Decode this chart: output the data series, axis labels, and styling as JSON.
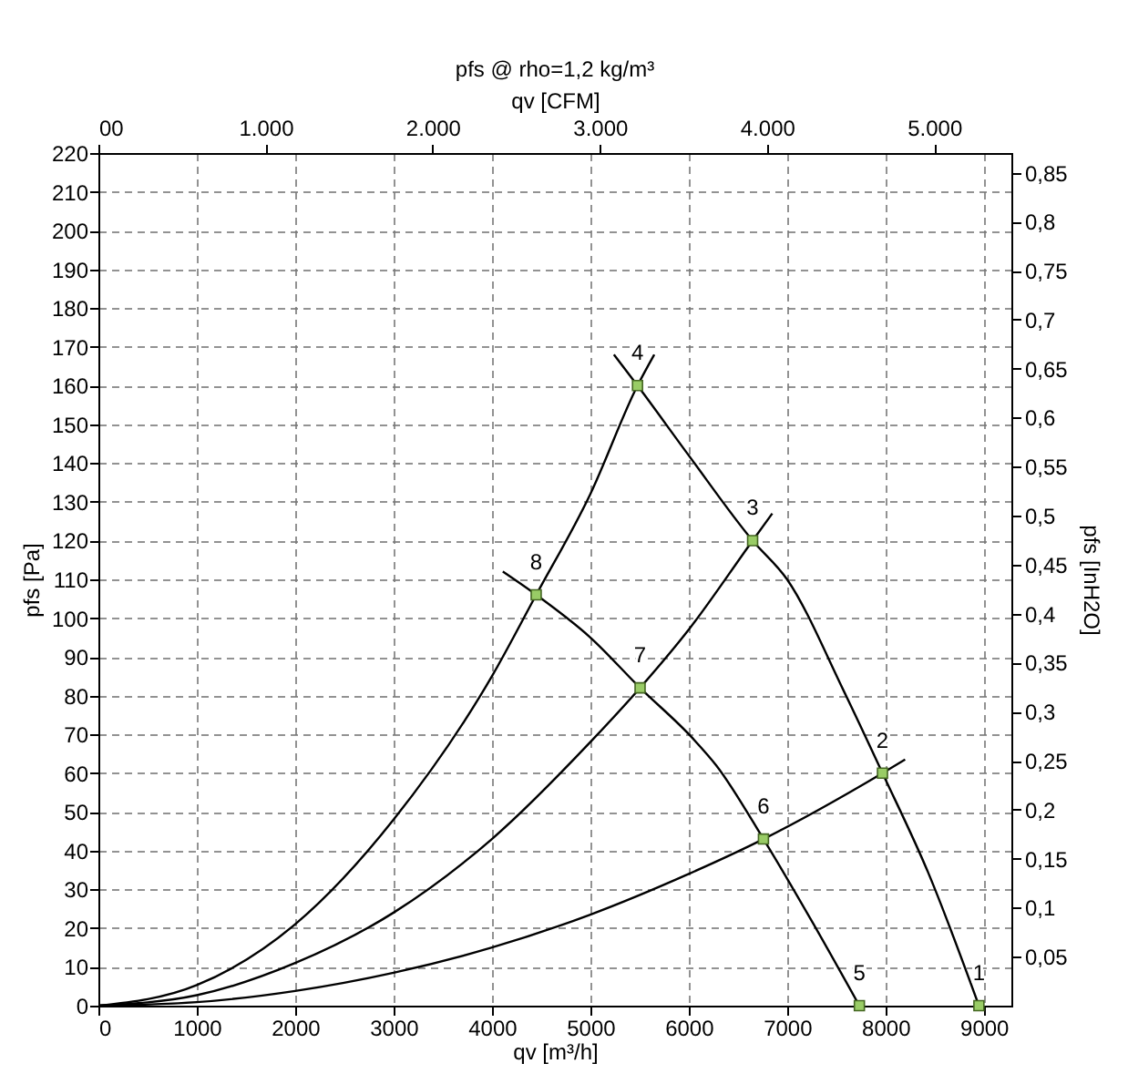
{
  "chart_data": {
    "type": "line",
    "title": "pfs @ rho=1,2 kg/m³",
    "xlabel": "qv [m³/h]",
    "ylabel": "pfs [Pa]",
    "x2label": "qv [CFM]",
    "y2label": "pfs [InH2O]",
    "xlim": [
      0,
      9280
    ],
    "xticks": [
      0,
      1000,
      2000,
      3000,
      4000,
      5000,
      6000,
      7000,
      8000,
      9000
    ],
    "ylim": [
      0,
      220
    ],
    "yticks": [
      0,
      10,
      20,
      30,
      40,
      50,
      60,
      70,
      80,
      90,
      100,
      110,
      120,
      130,
      140,
      150,
      160,
      170,
      180,
      190,
      200,
      210,
      220
    ],
    "x2lim": [
      0,
      5462
    ],
    "x2ticks": [
      {
        "value": 0,
        "label": "00"
      },
      {
        "value": 1000,
        "label": "1.000"
      },
      {
        "value": 2000,
        "label": "2.000"
      },
      {
        "value": 3000,
        "label": "3.000"
      },
      {
        "value": 4000,
        "label": "4.000"
      },
      {
        "value": 5000,
        "label": "5.000"
      }
    ],
    "y2lim": [
      0,
      0.87
    ],
    "y2ticks": [
      {
        "value": 0.05,
        "label": "0,05"
      },
      {
        "value": 0.1,
        "label": "0,1"
      },
      {
        "value": 0.15,
        "label": "0,15"
      },
      {
        "value": 0.2,
        "label": "0,2"
      },
      {
        "value": 0.25,
        "label": "0,25"
      },
      {
        "value": 0.3,
        "label": "0,3"
      },
      {
        "value": 0.35,
        "label": "0,35"
      },
      {
        "value": 0.4,
        "label": "0,4"
      },
      {
        "value": 0.45,
        "label": "0,45"
      },
      {
        "value": 0.5,
        "label": "0,5"
      },
      {
        "value": 0.55,
        "label": "0,55"
      },
      {
        "value": 0.6,
        "label": "0,6"
      },
      {
        "value": 0.65,
        "label": "0,65"
      },
      {
        "value": 0.7,
        "label": "0,7"
      },
      {
        "value": 0.75,
        "label": "0,75"
      },
      {
        "value": 0.8,
        "label": "0,8"
      },
      {
        "value": 0.85,
        "label": "0,85"
      }
    ],
    "grid": true,
    "line_style": "solid",
    "series": [
      {
        "type": "line",
        "color": "#000000",
        "x": [
          5240,
          5480,
          6000,
          6650,
          7000,
          7580,
          7970,
          8440,
          8950
        ],
        "values": [
          168,
          160,
          142,
          120,
          110,
          81,
          60,
          34,
          0
        ]
      },
      {
        "type": "line",
        "color": "#000000",
        "x": [
          4110,
          4450,
          5000,
          5506,
          6040,
          6280,
          6760,
          7270,
          7735
        ],
        "values": [
          112,
          106,
          95,
          82,
          69,
          62,
          43,
          21,
          0
        ]
      },
      {
        "type": "line",
        "color": "#000000",
        "x": [
          0,
          1000,
          2000,
          3000,
          4000,
          4450,
          5000,
          5480,
          5650
        ],
        "values": [
          0,
          5.3,
          21,
          48,
          85,
          106,
          132,
          160,
          168
        ]
      },
      {
        "type": "line",
        "color": "#000000",
        "x": [
          0,
          1000,
          2000,
          3000,
          4000,
          5000,
          5506,
          6000,
          6650,
          6850
        ],
        "values": [
          0,
          2.7,
          11,
          24,
          43,
          68,
          82,
          97,
          120,
          127
        ]
      },
      {
        "type": "line",
        "color": "#000000",
        "x": [
          0,
          1000,
          2000,
          3000,
          4000,
          5000,
          6000,
          6760,
          7970,
          8200
        ],
        "values": [
          0,
          0.9,
          3.8,
          8.5,
          15,
          23.5,
          34,
          43,
          60,
          63.5
        ]
      },
      {
        "type": "scatter",
        "marker": "square",
        "color": "#99cc66",
        "x": [
          8950,
          7970,
          6650,
          5480,
          7735,
          6760,
          5506,
          4450
        ],
        "values": [
          0,
          60,
          120,
          160,
          0,
          43,
          82,
          106
        ]
      }
    ],
    "annotations": [
      {
        "text": "1",
        "x": 8950,
        "y": 0
      },
      {
        "text": "2",
        "x": 7970,
        "y": 60
      },
      {
        "text": "3",
        "x": 6650,
        "y": 120
      },
      {
        "text": "4",
        "x": 5480,
        "y": 160
      },
      {
        "text": "5",
        "x": 7735,
        "y": 0
      },
      {
        "text": "6",
        "x": 6760,
        "y": 43
      },
      {
        "text": "7",
        "x": 5506,
        "y": 82
      },
      {
        "text": "8",
        "x": 4450,
        "y": 106
      }
    ]
  }
}
